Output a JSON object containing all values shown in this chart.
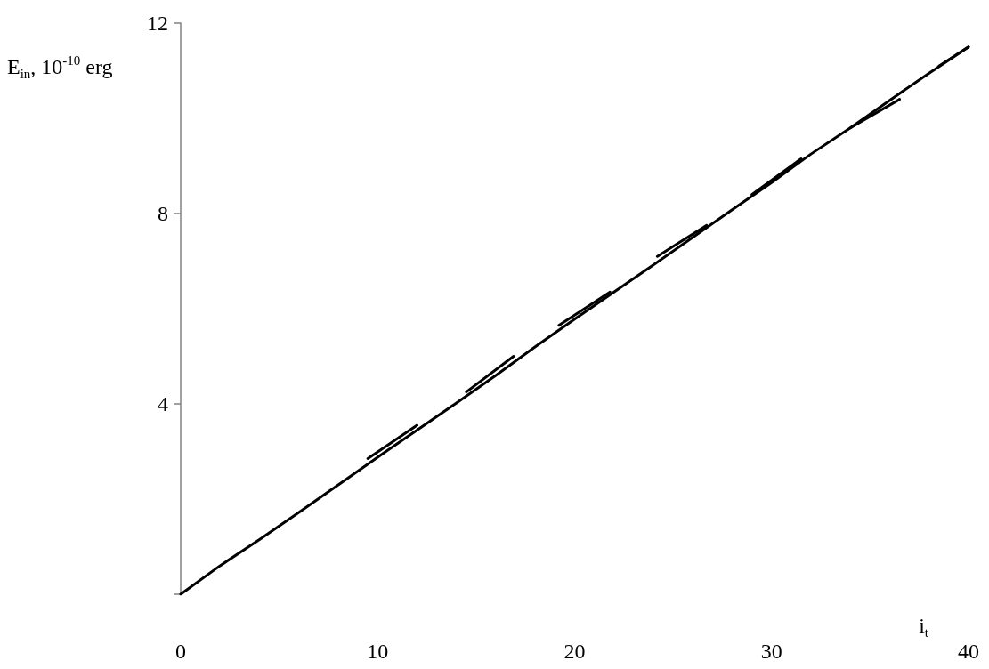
{
  "chart_data": {
    "type": "line",
    "xlabel": "i$_{t}$",
    "ylabel": "E$_{in}$, 10$^{-10}$ erg",
    "xlim": [
      0,
      40
    ],
    "xticks": [
      0,
      10,
      20,
      30,
      40
    ],
    "ylim": [
      0,
      12
    ],
    "yticks": [
      {
        "value": 0,
        "label": null
      },
      4,
      8,
      12
    ],
    "grid": false,
    "marker": "none",
    "line_style": "solid",
    "series": [
      {
        "color": "#000000",
        "x": [
          0,
          2,
          4,
          6,
          8,
          10,
          12,
          14,
          16,
          18,
          20,
          22,
          24,
          26,
          28,
          30,
          32,
          34,
          36,
          38,
          40
        ],
        "values": [
          0,
          0.6,
          1.15,
          1.72,
          2.3,
          2.88,
          3.45,
          4.02,
          4.6,
          5.2,
          5.78,
          6.35,
          6.92,
          7.5,
          8.08,
          8.65,
          9.25,
          9.8,
          10.38,
          10.95,
          11.5
        ]
      },
      {
        "color": "#000000",
        "x": [
          9.5,
          12
        ],
        "values": [
          2.85,
          3.55
        ]
      },
      {
        "color": "#000000",
        "x": [
          14.5,
          16.9
        ],
        "values": [
          4.25,
          5.0
        ]
      },
      {
        "color": "#000000",
        "x": [
          19.2,
          21.8
        ],
        "values": [
          5.65,
          6.35
        ]
      },
      {
        "color": "#000000",
        "x": [
          24.2,
          26.7
        ],
        "values": [
          7.1,
          7.75
        ]
      },
      {
        "color": "#000000",
        "x": [
          29,
          31.5
        ],
        "values": [
          8.4,
          9.15
        ]
      },
      {
        "color": "#000000",
        "x": [
          34,
          36.5
        ],
        "values": [
          9.8,
          10.4
        ]
      },
      {
        "color": "#000000",
        "x": [
          38.5,
          40
        ],
        "values": [
          11.1,
          11.5
        ]
      }
    ]
  }
}
